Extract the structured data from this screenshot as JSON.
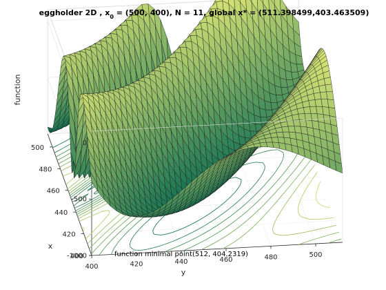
{
  "chart_data": {
    "type": "surface",
    "title": {
      "prefix": "eggholder 2D , x",
      "sub": "0",
      "suffix": " = (500, 400), N = 11, global x* = (511.398499,403.463509)"
    },
    "zlabel": "function",
    "xlabel": "x",
    "ylabel": "y",
    "x_ticks": [
      400,
      420,
      440,
      460,
      480,
      500
    ],
    "y_ticks": [
      400,
      420,
      440,
      460,
      480,
      500
    ],
    "z_ticks": [
      0,
      -500,
      -1000
    ],
    "xlim": [
      400,
      512
    ],
    "ylim": [
      400,
      512
    ],
    "zlim": [
      -1000,
      100
    ],
    "grid": true,
    "colormap": "summer",
    "contour_levels": 10,
    "annotation": "function minimal point(512, 404.2319)"
  },
  "colors": {
    "surface_low": "#0e7a52",
    "surface_high": "#f4f47a",
    "edge": "#1a1a1a",
    "box": "#d7d7d7"
  }
}
